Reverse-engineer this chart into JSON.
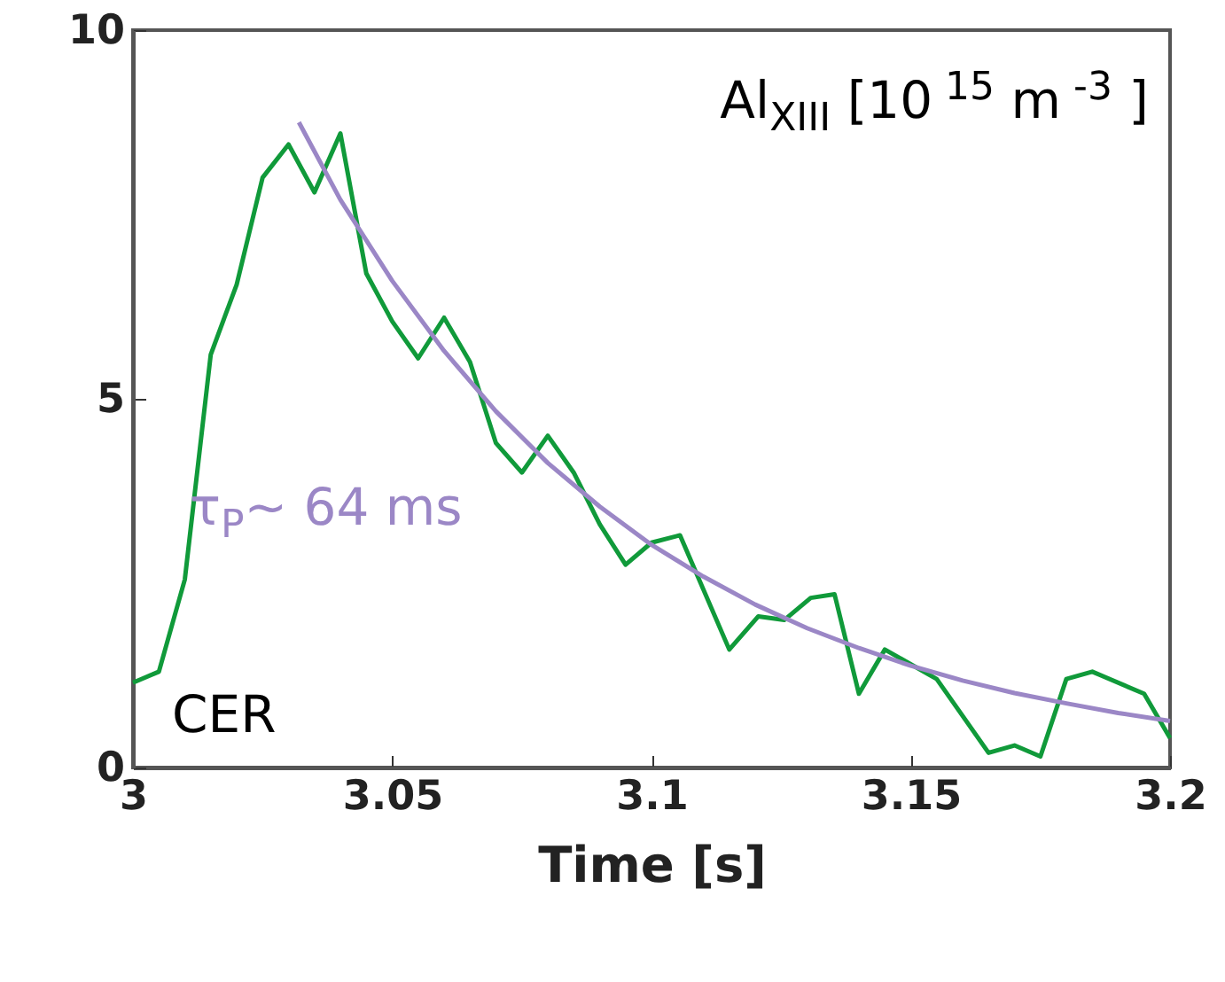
{
  "chart_data": {
    "type": "line",
    "xlabel": "Time [s]",
    "xlim": [
      3,
      3.2
    ],
    "xticks": [
      3,
      3.05,
      3.1,
      3.15,
      3.2
    ],
    "ylim": [
      0,
      10
    ],
    "yticks": [
      0,
      5,
      10
    ],
    "grid": false,
    "annotations": [
      "Al$_{XIII}$ [10$^{ 15}$ m$^{ -3}$ ]",
      "τ$_{P}$~ 64 ms",
      "CER"
    ],
    "series": [
      {
        "color": "#109a3a",
        "x": [
          3.0,
          3.005,
          3.01,
          3.015,
          3.02,
          3.025,
          3.03,
          3.035,
          3.04,
          3.045,
          3.05,
          3.055,
          3.06,
          3.065,
          3.07,
          3.075,
          3.08,
          3.085,
          3.09,
          3.095,
          3.1,
          3.1055,
          3.115,
          3.1206,
          3.1256,
          3.1307,
          3.1353,
          3.14,
          3.145,
          3.155,
          3.165,
          3.17,
          3.175,
          3.18,
          3.185,
          3.195,
          3.2
        ],
        "values": [
          1.15,
          1.3,
          2.55,
          5.6,
          6.55,
          8.0,
          8.45,
          7.8,
          8.6,
          6.7,
          6.05,
          5.55,
          6.1,
          5.5,
          4.4,
          4.0,
          4.5,
          4.0,
          3.3,
          2.75,
          3.05,
          3.15,
          1.6,
          2.05,
          2.0,
          2.3,
          2.35,
          1.0,
          1.6,
          1.2,
          0.2,
          0.3,
          0.15,
          1.2,
          1.3,
          1.0,
          0.4
        ]
      },
      {
        "color": "#9b87c6",
        "x": [
          3.032,
          3.04,
          3.05,
          3.06,
          3.07,
          3.08,
          3.09,
          3.1,
          3.11,
          3.12,
          3.13,
          3.14,
          3.15,
          3.16,
          3.17,
          3.18,
          3.19,
          3.2
        ],
        "values": [
          8.75,
          7.7,
          6.6,
          5.65,
          4.83,
          4.13,
          3.54,
          3.02,
          2.59,
          2.21,
          1.89,
          1.62,
          1.38,
          1.18,
          1.01,
          0.87,
          0.74,
          0.63
        ]
      }
    ]
  }
}
